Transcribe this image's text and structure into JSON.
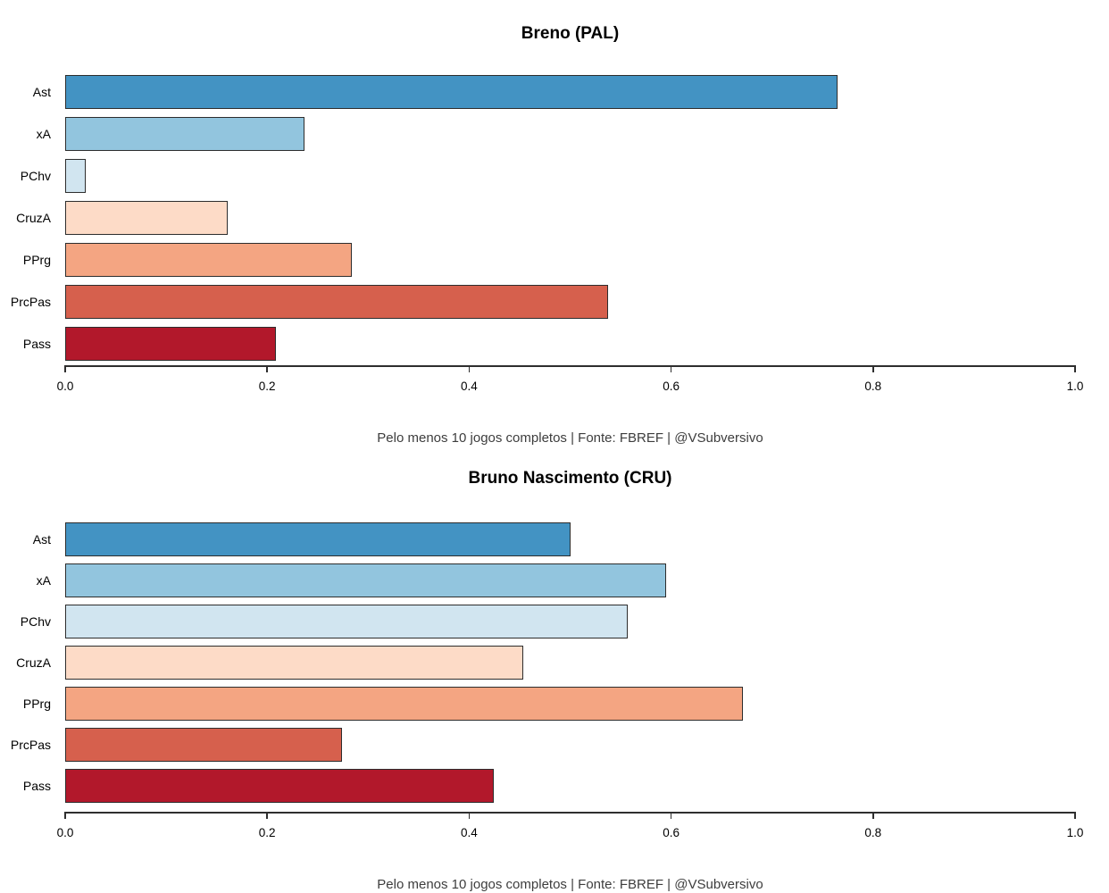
{
  "chart_data": [
    {
      "type": "bar",
      "orientation": "horizontal",
      "title": "Breno (PAL)",
      "subtitle": "Pelo menos 10 jogos completos | Fonte: FBREF | @VSubversivo",
      "categories": [
        "Ast",
        "xA",
        "PChv",
        "CruzA",
        "PPrg",
        "PrcPas",
        "Pass"
      ],
      "values": [
        0.765,
        0.237,
        0.02,
        0.161,
        0.284,
        0.538,
        0.209
      ],
      "xlabel": "",
      "ylabel": "",
      "xlim": [
        0,
        1
      ],
      "x_ticks": [
        0,
        0.2,
        0.4,
        0.6,
        0.8,
        1.0
      ],
      "x_tick_labels": [
        "0.0",
        "0.2",
        "0.4",
        "0.6",
        "0.8",
        "1.0"
      ],
      "grid": false,
      "legend": null,
      "bar_colors": [
        "#4393c3",
        "#92c5de",
        "#d1e5f0",
        "#fddbc7",
        "#f4a582",
        "#d6604d",
        "#b2182b"
      ],
      "bar_border_color": "#2d2d2d",
      "background_color": "#ffffff"
    },
    {
      "type": "bar",
      "orientation": "horizontal",
      "title": "Bruno Nascimento (CRU)",
      "subtitle": "Pelo menos 10 jogos completos | Fonte: FBREF | @VSubversivo",
      "categories": [
        "Ast",
        "xA",
        "PChv",
        "CruzA",
        "PPrg",
        "PrcPas",
        "Pass"
      ],
      "values": [
        0.5,
        0.595,
        0.557,
        0.454,
        0.671,
        0.274,
        0.424
      ],
      "xlabel": "",
      "ylabel": "",
      "xlim": [
        0,
        1
      ],
      "x_ticks": [
        0,
        0.2,
        0.4,
        0.6,
        0.8,
        1.0
      ],
      "x_tick_labels": [
        "0.0",
        "0.2",
        "0.4",
        "0.6",
        "0.8",
        "1.0"
      ],
      "grid": false,
      "legend": null,
      "bar_colors": [
        "#4393c3",
        "#92c5de",
        "#d1e5f0",
        "#fddbc7",
        "#f4a582",
        "#d6604d",
        "#b2182b"
      ],
      "bar_border_color": "#2d2d2d",
      "background_color": "#ffffff"
    }
  ]
}
